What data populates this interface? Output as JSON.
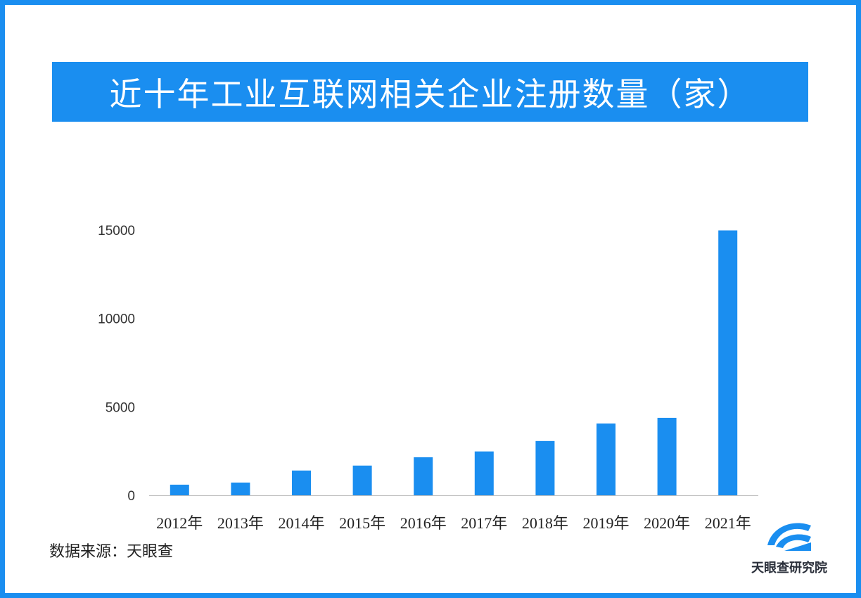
{
  "title": "近十年工业互联网相关企业注册数量（家）",
  "source": "数据来源：天眼查",
  "logo": {
    "text": "天眼查研究院",
    "icon": "tianyancha-logo-icon"
  },
  "colors": {
    "accent": "#1a8ef0",
    "bar": "#1a8ef0"
  },
  "chart_data": {
    "type": "bar",
    "title": "近十年工业互联网相关企业注册数量（家）",
    "categories": [
      "2012年",
      "2013年",
      "2014年",
      "2015年",
      "2016年",
      "2017年",
      "2018年",
      "2019年",
      "2020年",
      "2021年"
    ],
    "values": [
      600,
      720,
      1400,
      1680,
      2150,
      2480,
      3070,
      4060,
      4380,
      14980
    ],
    "ylim": [
      0,
      15000
    ],
    "yticks": [
      "0",
      "5000",
      "10000",
      "15000"
    ],
    "ytick_values": [
      0,
      5000,
      10000,
      15000
    ],
    "grid": false,
    "xlabel": "",
    "ylabel": ""
  }
}
